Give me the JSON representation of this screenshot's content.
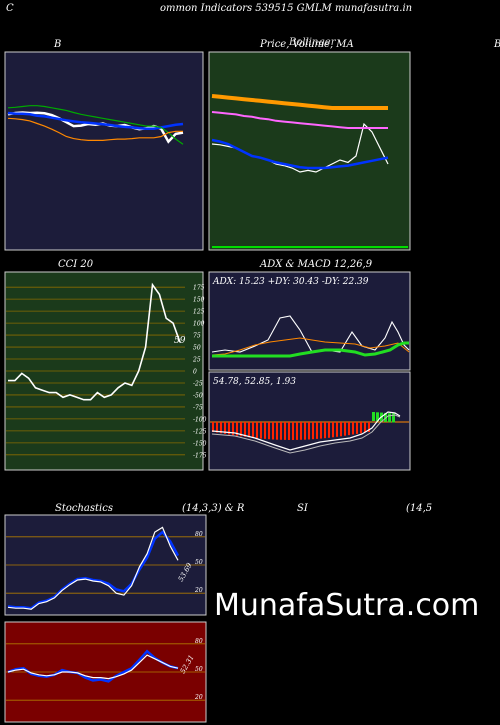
{
  "header": {
    "left_char": "C",
    "title": "ommon  Indicators 539515 GMLM munafasutra.in"
  },
  "panels": {
    "bollinger": {
      "title": "B"
    },
    "price": {
      "title": "Price,  Volume,  MA",
      "title_overlap": "Bollinger",
      "edge_char": "B"
    },
    "cci": {
      "title": "CCI 20",
      "value_label": "59"
    },
    "adx_macd": {
      "title": "ADX  & MACD 12,26,9",
      "adx_text": "ADX: 15.23  +DY: 30.43  -DY: 22.39",
      "macd_text": "54.78,  52.85,  1.93"
    },
    "stochastics": {
      "title": "Stochastics",
      "params": "(14,3,3) & R",
      "value_label": "53.69"
    },
    "rsi": {
      "title": "SI",
      "params": "(14,5",
      "value_label": "52.31"
    }
  },
  "watermark": "MunafaSutra.com",
  "colors": {
    "bollinger_bg": "#1c1c3a",
    "price_bg": "#1b3a1b",
    "cci_bg": "#1b3a1b",
    "adx_bg": "#1c1c3a",
    "stoch_bg": "#1c1c3a",
    "rsi_bg": "#7a0000"
  },
  "chart_data": [
    {
      "type": "line",
      "name": "bollinger",
      "series": [
        {
          "color": "#ffffff",
          "values": [
            0.55,
            0.5,
            0.48,
            0.5,
            0.49,
            0.51,
            0.58,
            0.7,
            0.85,
            1.0,
            0.98,
            0.92,
            0.95,
            0.9,
            0.98,
            1.0,
            0.96,
            1.05,
            1.12,
            1.08,
            1.0,
            1.1,
            1.6,
            1.3,
            1.25
          ]
        },
        {
          "color": "#0033ff",
          "values": [
            0.5,
            0.52,
            0.53,
            0.55,
            0.6,
            0.63,
            0.68,
            0.73,
            0.78,
            0.82,
            0.85,
            0.87,
            0.9,
            0.93,
            0.96,
            1.0,
            1.03,
            1.05,
            1.08,
            1.1,
            1.1,
            1.05,
            1.0,
            0.95,
            0.92
          ]
        },
        {
          "color": "#00aa00",
          "values": [
            0.3,
            0.28,
            0.25,
            0.22,
            0.22,
            0.25,
            0.3,
            0.35,
            0.4,
            0.48,
            0.55,
            0.6,
            0.65,
            0.7,
            0.75,
            0.8,
            0.85,
            0.9,
            0.95,
            1.0,
            1.0,
            1.05,
            1.25,
            1.5,
            1.7
          ]
        },
        {
          "color": "#ff8800",
          "values": [
            0.7,
            0.72,
            0.75,
            0.8,
            0.9,
            1.0,
            1.12,
            1.25,
            1.4,
            1.48,
            1.52,
            1.55,
            1.55,
            1.55,
            1.52,
            1.5,
            1.5,
            1.48,
            1.45,
            1.45,
            1.45,
            1.4,
            1.25,
            1.2,
            1.2
          ]
        }
      ]
    },
    {
      "type": "line",
      "name": "price",
      "series": [
        {
          "color": "#ffffff",
          "values": [
            0.35,
            0.34,
            0.32,
            0.3,
            0.25,
            0.2,
            0.18,
            0.15,
            0.1,
            0.08,
            0.05,
            0.0,
            0.02,
            0.0,
            0.05,
            0.1,
            0.15,
            0.12,
            0.2,
            0.6,
            0.5,
            0.3,
            0.1
          ]
        },
        {
          "color": "#0033ff",
          "values": [
            0.4,
            0.38,
            0.35,
            0.3,
            0.25,
            0.2,
            0.18,
            0.15,
            0.12,
            0.1,
            0.08,
            0.06,
            0.05,
            0.05,
            0.05,
            0.06,
            0.07,
            0.08,
            0.1,
            0.12,
            0.14,
            0.16,
            0.18
          ]
        },
        {
          "color": "#ff9900",
          "values": [
            0.95,
            0.94,
            0.93,
            0.92,
            0.91,
            0.9,
            0.89,
            0.88,
            0.87,
            0.86,
            0.85,
            0.84,
            0.83,
            0.82,
            0.81,
            0.8,
            0.8,
            0.8,
            0.8,
            0.8,
            0.8,
            0.8,
            0.8
          ]
        },
        {
          "color": "#ff66ff",
          "values": [
            0.75,
            0.74,
            0.73,
            0.72,
            0.7,
            0.69,
            0.67,
            0.66,
            0.64,
            0.63,
            0.62,
            0.61,
            0.6,
            0.59,
            0.58,
            0.57,
            0.56,
            0.55,
            0.55,
            0.55,
            0.55,
            0.55,
            0.55
          ]
        }
      ]
    },
    {
      "type": "line",
      "name": "cci",
      "y_ticks": [
        175,
        150,
        125,
        100,
        75,
        50,
        25,
        0,
        -25,
        -50,
        -75,
        -100,
        -125,
        -150,
        -175
      ],
      "ylim": [
        -190,
        190
      ],
      "series": [
        {
          "color": "#ffffff",
          "values": [
            -20,
            -20,
            -5,
            -15,
            -35,
            -40,
            -45,
            -45,
            -55,
            -50,
            -55,
            -60,
            -60,
            -45,
            -55,
            -50,
            -35,
            -25,
            -30,
            0,
            50,
            180,
            160,
            110,
            100,
            60
          ]
        }
      ]
    },
    {
      "type": "line",
      "name": "stochastics",
      "y_ticks": [
        80,
        50,
        20
      ],
      "ylim": [
        0,
        100
      ],
      "series": [
        {
          "color": "#0033ff",
          "values": [
            6,
            5,
            5,
            4,
            10,
            12,
            16,
            24,
            30,
            35,
            36,
            34,
            33,
            30,
            24,
            22,
            30,
            45,
            58,
            78,
            85,
            75,
            60
          ]
        },
        {
          "color": "#ffffff",
          "values": [
            5,
            4,
            4,
            3,
            9,
            11,
            15,
            23,
            29,
            34,
            35,
            33,
            32,
            28,
            20,
            18,
            28,
            48,
            62,
            85,
            90,
            70,
            55
          ]
        }
      ]
    },
    {
      "type": "line",
      "name": "rsi",
      "y_ticks": [
        80,
        50,
        20
      ],
      "ylim": [
        0,
        100
      ],
      "series": [
        {
          "color": "#0033ff",
          "values": [
            50,
            53,
            54,
            48,
            46,
            45,
            47,
            52,
            50,
            49,
            44,
            41,
            42,
            40,
            46,
            50,
            54,
            63,
            72,
            65,
            60,
            56,
            54
          ]
        },
        {
          "color": "#ffffff",
          "values": [
            50,
            52,
            53,
            49,
            47,
            46,
            47,
            50,
            50,
            49,
            46,
            44,
            44,
            43,
            45,
            48,
            52,
            60,
            68,
            64,
            60,
            56,
            54
          ]
        }
      ]
    }
  ]
}
